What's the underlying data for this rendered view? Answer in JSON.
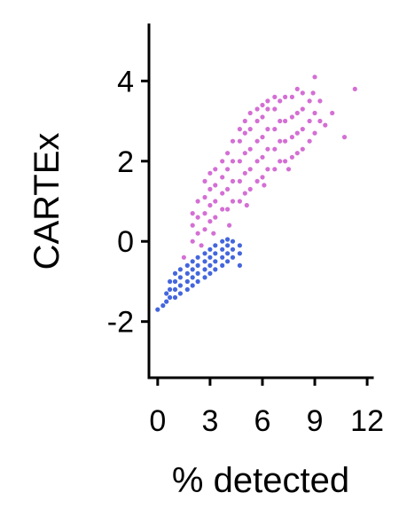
{
  "chart_data": {
    "type": "scatter",
    "title": "",
    "xlabel": "% detected",
    "ylabel": "CARTEx",
    "xlim": [
      -0.5,
      12.3
    ],
    "ylim": [
      -3.4,
      5.4
    ],
    "xticks": [
      "0",
      "3",
      "6",
      "9",
      "12"
    ],
    "xtick_values": [
      0,
      3,
      6,
      9,
      12
    ],
    "yticks": [
      "4",
      "2",
      "0",
      "-2"
    ],
    "ytick_values": [
      4,
      2,
      0,
      -2
    ],
    "grid": false,
    "legend": "none",
    "series": [
      {
        "color": "#d46fd4",
        "points": [
          [
            1.5,
            -0.4
          ],
          [
            2.0,
            0.0
          ],
          [
            2.0,
            0.4
          ],
          [
            2.0,
            0.7
          ],
          [
            2.3,
            0.2
          ],
          [
            2.3,
            0.6
          ],
          [
            2.3,
            1.0
          ],
          [
            2.7,
            0.3
          ],
          [
            2.7,
            0.7
          ],
          [
            2.7,
            1.1
          ],
          [
            2.7,
            1.5
          ],
          [
            3.0,
            0.5
          ],
          [
            3.0,
            0.9
          ],
          [
            3.0,
            1.3
          ],
          [
            3.0,
            1.7
          ],
          [
            3.3,
            0.6
          ],
          [
            3.3,
            1.0
          ],
          [
            3.3,
            1.4
          ],
          [
            3.3,
            1.8
          ],
          [
            3.7,
            0.8
          ],
          [
            3.7,
            1.2
          ],
          [
            3.7,
            1.6
          ],
          [
            3.7,
            2.0
          ],
          [
            4.0,
            0.8
          ],
          [
            4.0,
            1.3
          ],
          [
            4.0,
            1.8
          ],
          [
            4.0,
            2.2
          ],
          [
            4.3,
            1.0
          ],
          [
            4.3,
            1.5
          ],
          [
            4.3,
            2.0
          ],
          [
            4.3,
            2.5
          ],
          [
            4.7,
            1.0
          ],
          [
            4.7,
            1.5
          ],
          [
            4.7,
            2.0
          ],
          [
            4.7,
            2.5
          ],
          [
            4.7,
            2.8
          ],
          [
            5.0,
            1.2
          ],
          [
            5.0,
            1.7
          ],
          [
            5.0,
            2.2
          ],
          [
            5.0,
            2.7
          ],
          [
            5.0,
            3.0
          ],
          [
            5.3,
            1.3
          ],
          [
            5.3,
            1.8
          ],
          [
            5.3,
            2.3
          ],
          [
            5.3,
            2.8
          ],
          [
            5.3,
            3.2
          ],
          [
            5.7,
            1.5
          ],
          [
            5.7,
            2.0
          ],
          [
            5.7,
            2.5
          ],
          [
            5.7,
            3.0
          ],
          [
            5.7,
            3.3
          ],
          [
            6.0,
            1.6
          ],
          [
            6.0,
            2.1
          ],
          [
            6.0,
            2.6
          ],
          [
            6.0,
            3.1
          ],
          [
            6.0,
            3.4
          ],
          [
            6.3,
            1.8
          ],
          [
            6.3,
            2.3
          ],
          [
            6.3,
            2.8
          ],
          [
            6.3,
            3.3
          ],
          [
            6.3,
            3.5
          ],
          [
            6.7,
            1.8
          ],
          [
            6.7,
            2.3
          ],
          [
            6.7,
            2.8
          ],
          [
            6.7,
            3.3
          ],
          [
            6.7,
            3.6
          ],
          [
            7.0,
            2.0
          ],
          [
            7.0,
            2.5
          ],
          [
            7.0,
            3.0
          ],
          [
            7.0,
            3.5
          ],
          [
            7.3,
            2.0
          ],
          [
            7.3,
            2.5
          ],
          [
            7.3,
            3.0
          ],
          [
            7.3,
            3.6
          ],
          [
            7.7,
            2.1
          ],
          [
            7.7,
            2.6
          ],
          [
            7.7,
            3.1
          ],
          [
            7.7,
            3.6
          ],
          [
            8.0,
            2.2
          ],
          [
            8.0,
            2.7
          ],
          [
            8.0,
            3.2
          ],
          [
            8.0,
            3.8
          ],
          [
            8.3,
            2.3
          ],
          [
            8.3,
            2.8
          ],
          [
            8.3,
            3.3
          ],
          [
            8.3,
            3.7
          ],
          [
            8.7,
            2.5
          ],
          [
            8.7,
            3.0
          ],
          [
            8.7,
            3.5
          ],
          [
            9.0,
            2.7
          ],
          [
            9.0,
            3.2
          ],
          [
            9.0,
            4.1
          ],
          [
            9.3,
            3.0
          ],
          [
            9.3,
            3.5
          ],
          [
            10.0,
            3.2
          ],
          [
            10.7,
            2.6
          ],
          [
            11.3,
            3.8
          ],
          [
            2.5,
            -0.1
          ],
          [
            3.2,
            0.2
          ],
          [
            4.1,
            0.4
          ],
          [
            8.9,
            3.7
          ],
          [
            7.5,
            1.8
          ],
          [
            6.1,
            1.4
          ],
          [
            5.1,
            0.9
          ],
          [
            9.6,
            2.9
          ]
        ]
      },
      {
        "color": "#4466dd",
        "points": [
          [
            0.0,
            -1.7
          ],
          [
            0.3,
            -1.6
          ],
          [
            0.5,
            -1.5
          ],
          [
            0.5,
            -1.3
          ],
          [
            0.7,
            -1.4
          ],
          [
            0.7,
            -1.2
          ],
          [
            0.7,
            -1.0
          ],
          [
            1.0,
            -1.4
          ],
          [
            1.0,
            -1.2
          ],
          [
            1.0,
            -1.0
          ],
          [
            1.0,
            -0.8
          ],
          [
            1.3,
            -1.3
          ],
          [
            1.3,
            -1.1
          ],
          [
            1.3,
            -0.9
          ],
          [
            1.3,
            -0.7
          ],
          [
            1.7,
            -1.2
          ],
          [
            1.7,
            -1.0
          ],
          [
            1.7,
            -0.8
          ],
          [
            1.7,
            -0.6
          ],
          [
            2.0,
            -1.1
          ],
          [
            2.0,
            -0.9
          ],
          [
            2.0,
            -0.7
          ],
          [
            2.0,
            -0.5
          ],
          [
            2.3,
            -1.0
          ],
          [
            2.3,
            -0.8
          ],
          [
            2.3,
            -0.6
          ],
          [
            2.3,
            -0.4
          ],
          [
            2.7,
            -0.9
          ],
          [
            2.7,
            -0.7
          ],
          [
            2.7,
            -0.5
          ],
          [
            2.7,
            -0.3
          ],
          [
            3.0,
            -0.8
          ],
          [
            3.0,
            -0.6
          ],
          [
            3.0,
            -0.4
          ],
          [
            3.0,
            -0.2
          ],
          [
            3.3,
            -0.7
          ],
          [
            3.3,
            -0.5
          ],
          [
            3.3,
            -0.3
          ],
          [
            3.3,
            -0.1
          ],
          [
            3.7,
            -0.6
          ],
          [
            3.7,
            -0.4
          ],
          [
            3.7,
            -0.2
          ],
          [
            3.7,
            0.0
          ],
          [
            4.0,
            -0.5
          ],
          [
            4.0,
            -0.3
          ],
          [
            4.0,
            -0.1
          ],
          [
            4.0,
            0.05
          ],
          [
            4.3,
            -0.4
          ],
          [
            4.3,
            -0.2
          ],
          [
            4.3,
            0.0
          ],
          [
            4.7,
            -0.6
          ],
          [
            4.7,
            -0.3
          ],
          [
            4.7,
            -0.1
          ]
        ]
      }
    ]
  }
}
